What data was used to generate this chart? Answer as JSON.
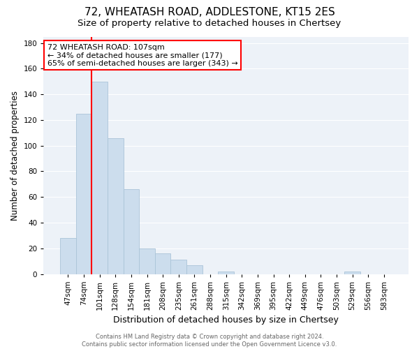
{
  "title": "72, WHEATASH ROAD, ADDLESTONE, KT15 2ES",
  "subtitle": "Size of property relative to detached houses in Chertsey",
  "xlabel": "Distribution of detached houses by size in Chertsey",
  "ylabel": "Number of detached properties",
  "footer_line1": "Contains HM Land Registry data © Crown copyright and database right 2024.",
  "footer_line2": "Contains public sector information licensed under the Open Government Licence v3.0.",
  "bin_labels": [
    "47sqm",
    "74sqm",
    "101sqm",
    "128sqm",
    "154sqm",
    "181sqm",
    "208sqm",
    "235sqm",
    "261sqm",
    "288sqm",
    "315sqm",
    "342sqm",
    "369sqm",
    "395sqm",
    "422sqm",
    "449sqm",
    "476sqm",
    "503sqm",
    "529sqm",
    "556sqm",
    "583sqm"
  ],
  "bar_values": [
    28,
    125,
    150,
    106,
    66,
    20,
    16,
    11,
    7,
    0,
    2,
    0,
    0,
    0,
    0,
    0,
    0,
    0,
    2,
    0,
    0
  ],
  "bar_color": "#ccdded",
  "bar_edge_color": "#aac4d8",
  "red_line_x": 1.5,
  "annotation_title": "72 WHEATASH ROAD: 107sqm",
  "annotation_line1": "← 34% of detached houses are smaller (177)",
  "annotation_line2": "65% of semi-detached houses are larger (343) →",
  "annotation_box_color": "white",
  "annotation_box_edge": "red",
  "ylim": [
    0,
    185
  ],
  "yticks": [
    0,
    20,
    40,
    60,
    80,
    100,
    120,
    140,
    160,
    180
  ],
  "bg_color": "#edf2f8",
  "grid_color": "white",
  "title_fontsize": 11,
  "subtitle_fontsize": 9.5,
  "ylabel_fontsize": 8.5,
  "xlabel_fontsize": 9,
  "tick_fontsize": 7.5,
  "footer_fontsize": 6,
  "annotation_fontsize": 8
}
